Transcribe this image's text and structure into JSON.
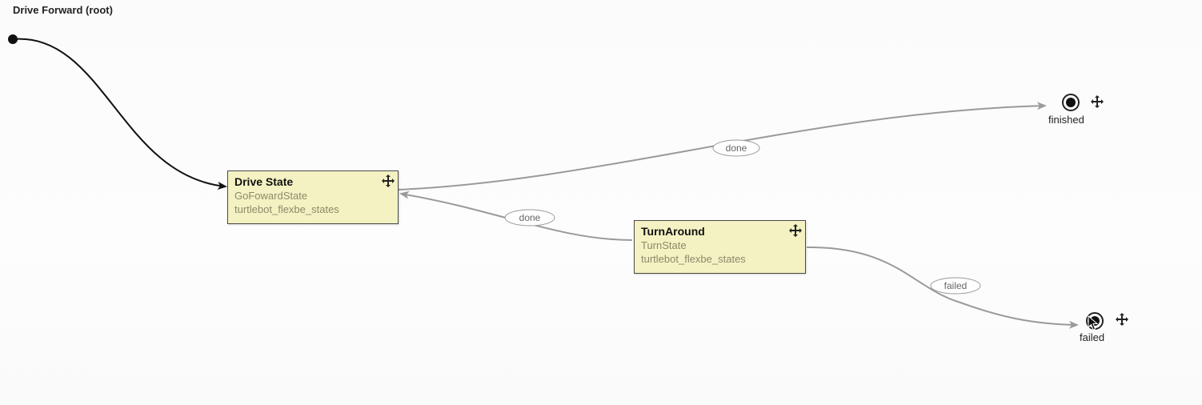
{
  "title": "Drive Forward (root)",
  "states": [
    {
      "name": "Drive State",
      "class": "GoFowardState",
      "package": "turtlebot_flexbe_states"
    },
    {
      "name": "TurnAround",
      "class": "TurnState",
      "package": "turtlebot_flexbe_states"
    }
  ],
  "outcomes": [
    {
      "label": "finished"
    },
    {
      "label": "failed"
    }
  ],
  "transitions": [
    {
      "from": "initial",
      "to": "Drive State",
      "label": ""
    },
    {
      "from": "Drive State",
      "to": "finished",
      "label": "done"
    },
    {
      "from": "TurnAround",
      "to": "Drive State",
      "label": "done"
    },
    {
      "from": "Drive State",
      "to": "TurnAround",
      "label": ""
    },
    {
      "from": "TurnAround",
      "to": "failed",
      "label": "failed"
    }
  ],
  "icons": {
    "move": "move-arrows-icon",
    "initial": "initial-state-icon",
    "cursor": "mouse-cursor-icon"
  },
  "colors": {
    "state_fill": "#f4f2c2",
    "edge_gray": "#9a9a9a",
    "edge_initial": "#111111"
  }
}
